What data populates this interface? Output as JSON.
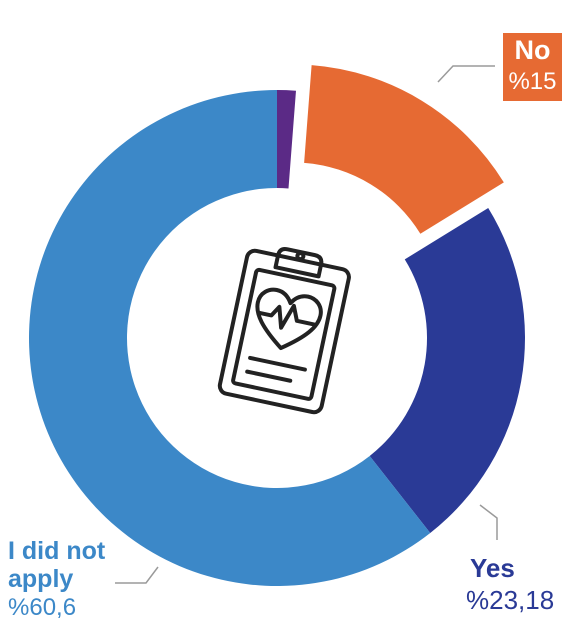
{
  "chart_data": {
    "type": "donut",
    "title": "",
    "categories": [
      "",
      "No",
      "Yes",
      "I did not apply"
    ],
    "values": [
      1.22,
      15,
      23.18,
      60.6
    ],
    "value_labels": [
      "",
      "%15",
      "%23,18",
      "%60,6"
    ],
    "colors": [
      "#5B2A86",
      "#E66A33",
      "#2A3A96",
      "#3C88C8"
    ],
    "exploded": [
      "No"
    ],
    "center_icon": "clipboard-heart-icon"
  },
  "labels": {
    "no": {
      "name": "No",
      "value": "%15"
    },
    "yes": {
      "name": "Yes",
      "value": "%23,18"
    },
    "did_not_apply": {
      "name_line1": "I did not",
      "name_line2": "apply",
      "value": "%60,6"
    }
  }
}
